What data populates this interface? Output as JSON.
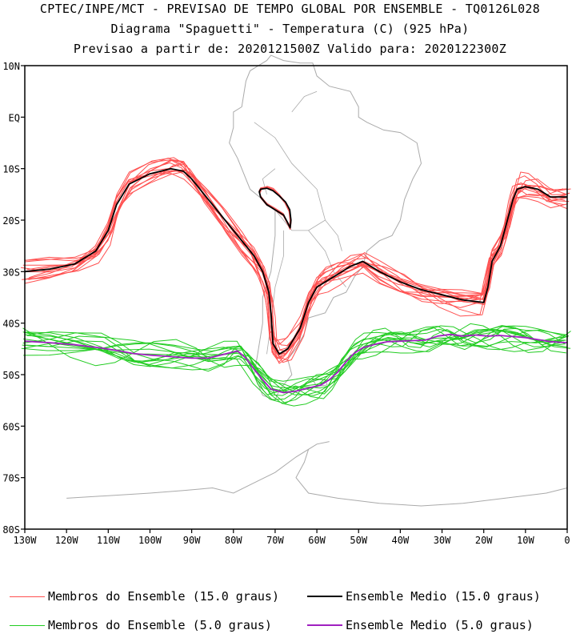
{
  "header": {
    "line1": "CPTEC/INPE/MCT - PREVISAO DE TEMPO GLOBAL POR ENSEMBLE - TQ0126L028",
    "line2": "Diagrama \"Spaguetti\" - Temperatura (C) (925 hPa)",
    "line3": "Previsao a partir de: 2020121500Z  Valido para: 2020122300Z"
  },
  "legend": {
    "members15": "Membros do Ensemble (15.0 graus)",
    "mean15": "Ensemble Medio (15.0 graus)",
    "members5": "Membros do Ensemble (5.0 graus)",
    "mean5": "Ensemble Medio (5.0 graus)"
  },
  "chart_data": {
    "type": "line",
    "title": "Diagrama \"Spaguetti\" - Temperatura (C) (925 hPa)",
    "xlim": [
      -130,
      0
    ],
    "ylim": [
      -80,
      10
    ],
    "x_ticks": [
      -130,
      -120,
      -110,
      -100,
      -90,
      -80,
      -70,
      -60,
      -50,
      -40,
      -30,
      -20,
      -10,
      0
    ],
    "x_tick_labels": [
      "130W",
      "120W",
      "110W",
      "100W",
      "90W",
      "80W",
      "70W",
      "60W",
      "50W",
      "40W",
      "30W",
      "20W",
      "10W",
      "0"
    ],
    "y_ticks": [
      10,
      0,
      -10,
      -20,
      -30,
      -40,
      -50,
      -60,
      -70,
      -80
    ],
    "y_tick_labels": [
      "10N",
      "EQ",
      "10S",
      "20S",
      "30S",
      "40S",
      "50S",
      "60S",
      "70S",
      "80S"
    ],
    "colors": {
      "members15": "#ff5050",
      "mean15": "#000000",
      "members5": "#22cc22",
      "mean5": "#a020c0",
      "coast": "#aaaaaa",
      "frame": "#000000"
    },
    "series": [
      {
        "name": "Ensemble Medio (15.0 graus)",
        "role": "mean15",
        "lon": [
          -130,
          -124,
          -118,
          -113,
          -110,
          -108,
          -105,
          -100,
          -95,
          -92,
          -90,
          -86,
          -82,
          -78,
          -75,
          -73,
          -71.5,
          -71,
          -70.5,
          -69,
          -67,
          -64,
          -62,
          -60,
          -58,
          -55,
          -52,
          -49,
          -45,
          -40,
          -35,
          -30,
          -25,
          -20,
          -19,
          -18,
          -16,
          -15,
          -14,
          -13,
          -12,
          -10,
          -7,
          -4,
          0
        ],
        "lat": [
          -30,
          -29.5,
          -28.5,
          -26,
          -22,
          -17,
          -13,
          -11,
          -10,
          -10.5,
          -12,
          -16,
          -20,
          -24,
          -27,
          -30,
          -34,
          -38,
          -44,
          -46,
          -45,
          -41,
          -36,
          -33,
          -32,
          -30.5,
          -29,
          -28,
          -30,
          -32,
          -33.5,
          -34.5,
          -35.5,
          -36,
          -33,
          -28,
          -25,
          -22,
          -19,
          -16,
          -14,
          -13.5,
          -14,
          -15.5,
          -15.5
        ]
      },
      {
        "name": "Ensemble Medio (15.0 graus) - Andes",
        "role": "mean15",
        "lon": [
          -73.5,
          -72,
          -70.5,
          -69,
          -67.5,
          -66.5,
          -66.2,
          -66.4,
          -67,
          -68,
          -70,
          -72,
          -73.5,
          -73.8,
          -73.5
        ],
        "lat": [
          -14,
          -13.8,
          -14.3,
          -15.3,
          -16.5,
          -18,
          -20,
          -21.5,
          -20.5,
          -19,
          -18,
          -17,
          -15.5,
          -14.5,
          -14
        ]
      },
      {
        "name": "Ensemble Medio (5.0 graus)",
        "role": "mean5",
        "lon": [
          -130,
          -124,
          -118,
          -112,
          -108,
          -104,
          -100,
          -95,
          -90,
          -86,
          -82,
          -79,
          -77,
          -75,
          -73,
          -71,
          -68,
          -65,
          -62,
          -59,
          -57,
          -55,
          -53,
          -51,
          -49,
          -46,
          -43,
          -40,
          -37,
          -34,
          -31,
          -28,
          -25,
          -22,
          -19,
          -16,
          -13,
          -10,
          -7,
          -4,
          0
        ],
        "lat": [
          -43.5,
          -43.8,
          -44.2,
          -44.8,
          -45.3,
          -45.9,
          -46.2,
          -46.5,
          -46.8,
          -46.8,
          -46.0,
          -45.4,
          -46.8,
          -49,
          -51,
          -52.8,
          -53.5,
          -53.2,
          -52.6,
          -52.0,
          -51.0,
          -49.5,
          -47.5,
          -45.8,
          -44.8,
          -44.1,
          -43.6,
          -43.5,
          -43.4,
          -43.3,
          -42.5,
          -42.2,
          -42.5,
          -42.3,
          -42.5,
          -42.4,
          -42.6,
          -42.8,
          -43.2,
          -43.6,
          -43.8
        ]
      }
    ]
  }
}
